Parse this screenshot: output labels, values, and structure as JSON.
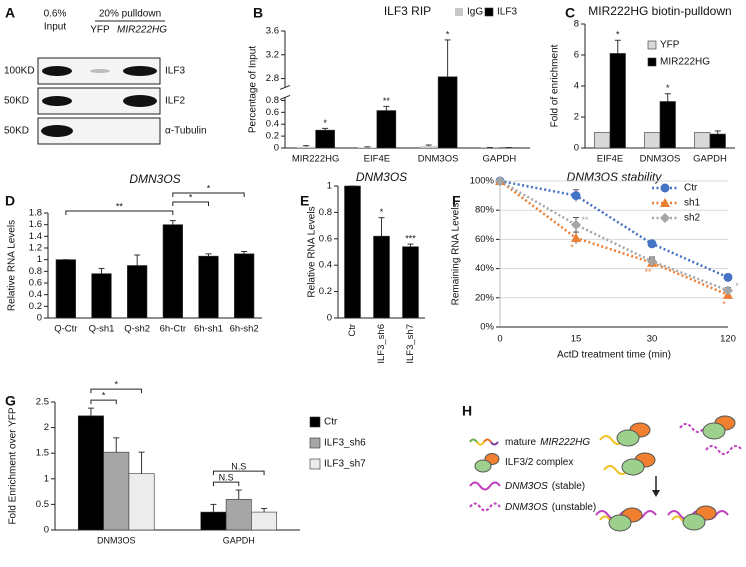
{
  "panel_a": {
    "letter": "A",
    "input": [
      "0.6%",
      "Input"
    ],
    "pulldown": "20% pulldown",
    "lanes": [
      "YFP",
      "MIR222HG"
    ],
    "markers": [
      "100KD",
      "50KD",
      "50KD"
    ],
    "proteins": [
      "ILF3",
      "ILF2",
      "α-Tubulin"
    ]
  },
  "chart_data": [
    {
      "panel": "B",
      "type": "bar",
      "title": "ILF3 RIP",
      "ylabel": "Percentage of Input",
      "categories": [
        "MIR222HG",
        "EIF4E",
        "DNM3OS",
        "GAPDH"
      ],
      "series": [
        {
          "name": "IgG",
          "color": "#c8c8c8",
          "values": [
            0.02,
            0.01,
            0.03,
            0.005
          ],
          "errors": [
            0.02,
            0.01,
            0.02,
            0.003
          ]
        },
        {
          "name": "ILF3",
          "color": "#000000",
          "values": [
            0.3,
            0.63,
            2.83,
            0.005
          ],
          "errors": [
            0.03,
            0.07,
            0.62,
            0.003
          ],
          "significance": [
            "*",
            "**",
            "*",
            null
          ]
        }
      ],
      "ylim": [
        0,
        3.6
      ],
      "ybreak": [
        0.85,
        2.65
      ],
      "yticks": [
        0,
        0.2,
        0.4,
        0.6,
        0.8,
        2.8,
        3.2,
        3.6
      ],
      "legend": "top"
    },
    {
      "panel": "C",
      "type": "bar",
      "title": "MIR222HG biotin-pulldown",
      "ylabel": "Fold of enrichment",
      "categories": [
        "EIF4E",
        "DNM3OS",
        "GAPDH"
      ],
      "series": [
        {
          "name": "YFP",
          "color": "#d9d9d9",
          "values": [
            1,
            1,
            1
          ]
        },
        {
          "name": "MIR222HG",
          "color": "#000000",
          "values": [
            6.1,
            3.0,
            0.9
          ],
          "errors": [
            0.85,
            0.5,
            0.2
          ],
          "significance": [
            "*",
            "*",
            null
          ]
        }
      ],
      "ylim": [
        0,
        8
      ],
      "yticks": [
        0,
        2,
        4,
        6,
        8
      ],
      "legend": "top-right"
    },
    {
      "panel": "D",
      "type": "bar",
      "title": "DMN3OS",
      "title_italic": true,
      "ylabel": "Relative RNA Levels",
      "categories": [
        "Q-Ctr",
        "Q-sh1",
        "Q-sh2",
        "6h-Ctr",
        "6h-sh1",
        "6h-sh2"
      ],
      "values": [
        1,
        0.76,
        0.9,
        1.6,
        1.06,
        1.1
      ],
      "errors": [
        0,
        0.09,
        0.18,
        0.07,
        0.04,
        0.04
      ],
      "color": "#000000",
      "ylim": [
        0,
        1.8
      ],
      "yticks": [
        0,
        0.2,
        0.4,
        0.6,
        0.8,
        1,
        1.2,
        1.4,
        1.6,
        1.8
      ],
      "brackets": [
        {
          "between": [
            "Q-Ctr",
            "6h-Ctr"
          ],
          "label": "**"
        },
        {
          "between": [
            "6h-Ctr",
            "6h-sh1"
          ],
          "label": "*"
        },
        {
          "between": [
            "6h-Ctr",
            "6h-sh2"
          ],
          "label": "*"
        }
      ]
    },
    {
      "panel": "E",
      "type": "bar",
      "title": "DNM3OS",
      "title_italic": true,
      "ylabel": "Relative RNA Levels",
      "categories": [
        "Ctr",
        "ILF3_sh6",
        "ILF3_sh7"
      ],
      "xtick_rotation": -90,
      "values": [
        1,
        0.62,
        0.54
      ],
      "errors": [
        0,
        0.14,
        0.02
      ],
      "significance": [
        null,
        "*",
        "***"
      ],
      "color": "#000000",
      "ylim": [
        0,
        1
      ],
      "yticks": [
        0,
        0.2,
        0.4,
        0.6,
        0.8,
        1
      ]
    },
    {
      "panel": "F",
      "type": "line",
      "title": "DNM3OS stability",
      "title_italic": true,
      "xlabel": "ActD treatment time (min)",
      "ylabel": "Remaining RNA Levels",
      "categories": [
        "0",
        "15",
        "30",
        "120"
      ],
      "series": [
        {
          "name": "Ctr",
          "color": "#4472c4",
          "marker": "circle",
          "values": [
            100,
            90,
            57,
            34
          ],
          "errors": [
            0,
            4,
            2,
            2
          ]
        },
        {
          "name": "sh1",
          "color": "#ed7d31",
          "marker": "triangle",
          "values": [
            100,
            61,
            44,
            22
          ],
          "errors": [
            0,
            4,
            3,
            2
          ],
          "significance": [
            null,
            "*",
            "**",
            "*"
          ]
        },
        {
          "name": "sh2",
          "color": "#a5a5a5",
          "marker": "diamond",
          "values": [
            100,
            70,
            45,
            25
          ],
          "errors": [
            0,
            5,
            3,
            2
          ],
          "significance": [
            null,
            "**",
            null,
            "*"
          ]
        }
      ],
      "ylim": [
        0,
        100
      ],
      "yticks": [
        {
          "value": 0,
          "label": "0%"
        },
        {
          "value": 20,
          "label": "20%"
        },
        {
          "value": 40,
          "label": "40%"
        },
        {
          "value": 60,
          "label": "60%"
        },
        {
          "value": 80,
          "label": "80%"
        },
        {
          "value": 100,
          "label": "100%"
        }
      ],
      "grid": true,
      "legend": "top-right"
    },
    {
      "panel": "G",
      "type": "bar",
      "ylabel": "Fold Enrichment over YFP",
      "categories": [
        "DNM3OS",
        "GAPDH"
      ],
      "series": [
        {
          "name": "Ctr",
          "color": "#000000",
          "values": [
            2.23,
            0.35
          ],
          "errors": [
            0.15,
            0.15
          ]
        },
        {
          "name": "ILF3_sh6",
          "color": "#a6a6a6",
          "values": [
            1.52,
            0.6
          ],
          "errors": [
            0.28,
            0.18
          ]
        },
        {
          "name": "ILF3_sh7",
          "color": "#ececec",
          "values": [
            1.1,
            0.35
          ],
          "errors": [
            0.42,
            0.07
          ]
        }
      ],
      "ylim": [
        0,
        2.5
      ],
      "yticks": [
        0,
        0.5,
        1,
        1.5,
        2,
        2.5
      ],
      "legend": "right",
      "brackets": [
        {
          "group": "DNM3OS",
          "between": [
            "Ctr",
            "ILF3_sh6"
          ],
          "label": "*"
        },
        {
          "group": "DNM3OS",
          "between": [
            "Ctr",
            "ILF3_sh7"
          ],
          "label": "*"
        },
        {
          "group": "GAPDH",
          "between": [
            "Ctr",
            "ILF3_sh6"
          ],
          "label": "N.S"
        },
        {
          "group": "GAPDH",
          "between": [
            "Ctr",
            "ILF3_sh7"
          ],
          "label": "N.S"
        }
      ]
    }
  ],
  "panel_h": {
    "letter": "H",
    "legend": [
      {
        "parts": [
          {
            "text": "mature"
          },
          {
            "text": "MIR222HG",
            "italic": true
          }
        ]
      },
      {
        "parts": [
          {
            "text": "ILF3/2 complex"
          }
        ]
      },
      {
        "parts": [
          {
            "text": "DNM3OS",
            "italic": true
          },
          {
            "text": "(stable)"
          }
        ]
      },
      {
        "parts": [
          {
            "text": "DNM3OS",
            "italic": true
          },
          {
            "text": "(unstable)"
          }
        ]
      }
    ]
  }
}
